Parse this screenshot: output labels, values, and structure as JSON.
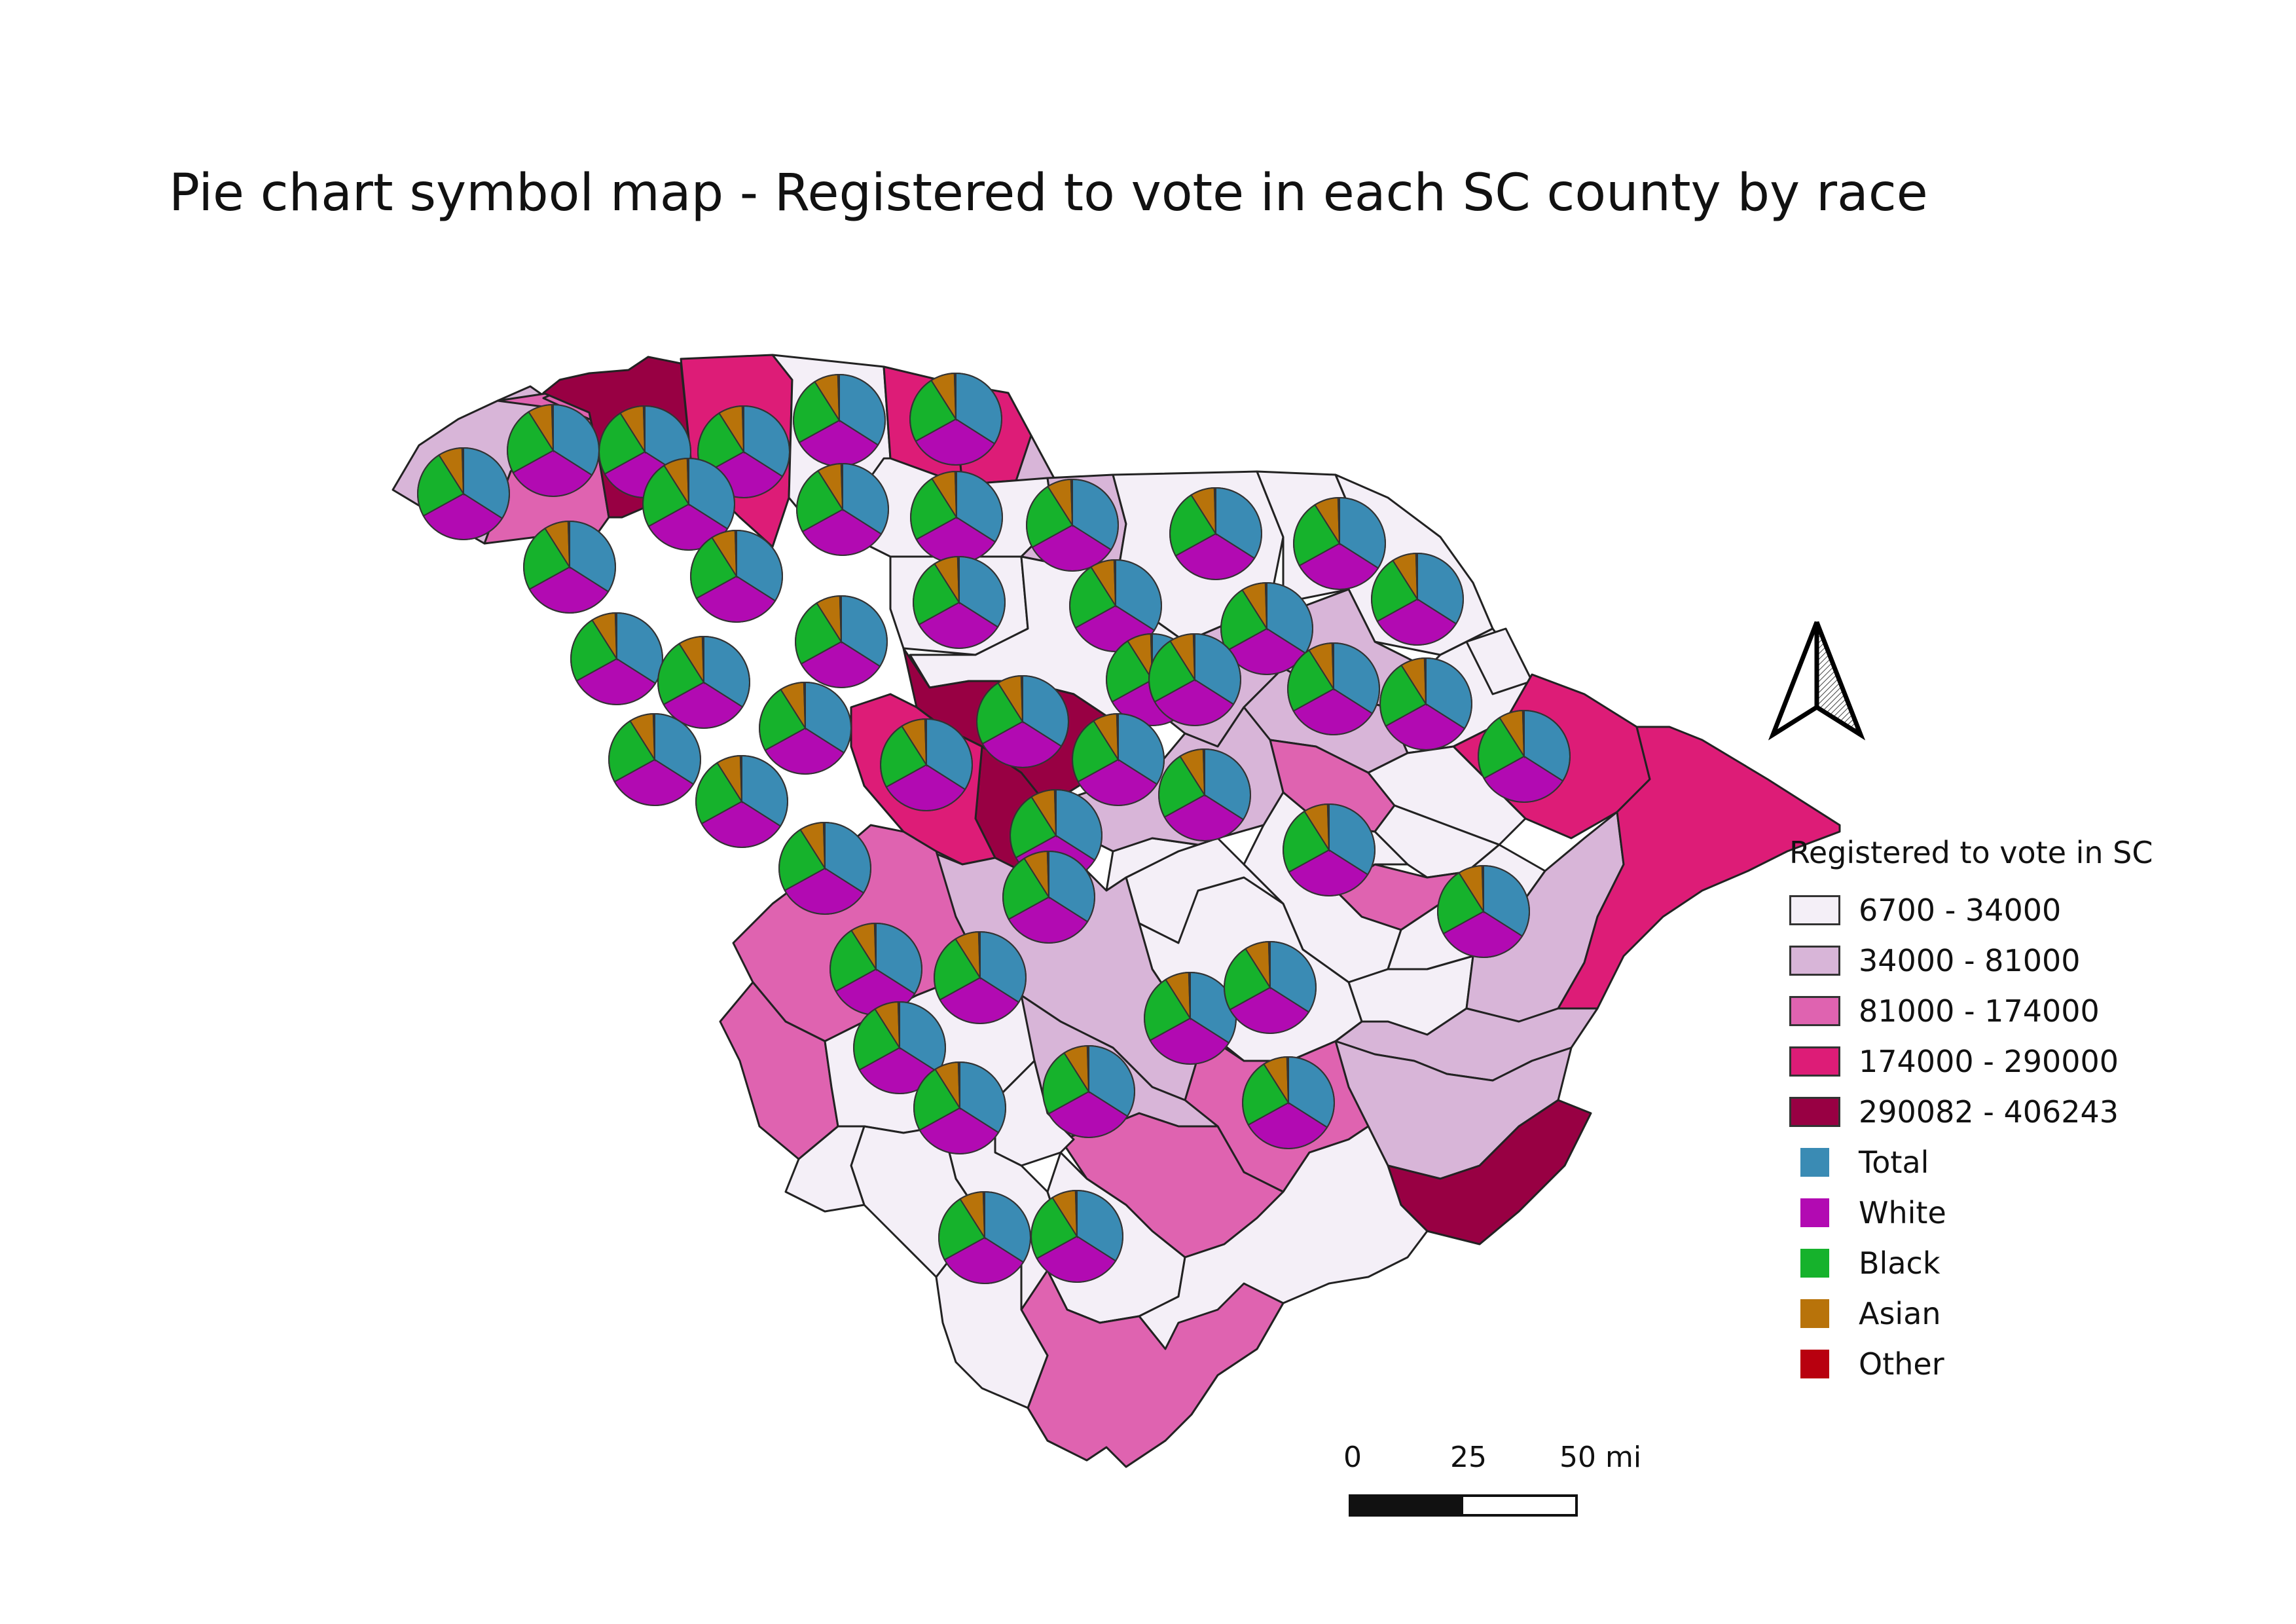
{
  "title": "Pie chart symbol map - Registered to vote in each SC county by race",
  "legend": {
    "title": "Registered to vote in SC",
    "classes": [
      {
        "label": "6700 - 34000",
        "color": "#f4eff7"
      },
      {
        "label": "34000 - 81000",
        "color": "#d8b5d8"
      },
      {
        "label": "81000 - 174000",
        "color": "#df63b0"
      },
      {
        "label": "174000 - 290000",
        "color": "#dd1c77"
      },
      {
        "label": "290082 - 406243",
        "color": "#980043"
      }
    ],
    "categories": [
      {
        "label": "Total",
        "color": "#3a8bb4"
      },
      {
        "label": "White",
        "color": "#b20ab2"
      },
      {
        "label": "Black",
        "color": "#16b22c"
      },
      {
        "label": "Asian",
        "color": "#b8730a"
      },
      {
        "label": "Other",
        "color": "#b8000f"
      }
    ]
  },
  "scale_bar": {
    "labels": [
      "0",
      "25",
      "50 mi"
    ]
  },
  "county_colors": {
    "light": "#f4eff7",
    "lavender": "#d8b5d8",
    "medium": "#df63b0",
    "bright": "#dd1c77",
    "dark": "#980043",
    "stroke": "#222222",
    "pie_stroke": "#333333"
  }
}
